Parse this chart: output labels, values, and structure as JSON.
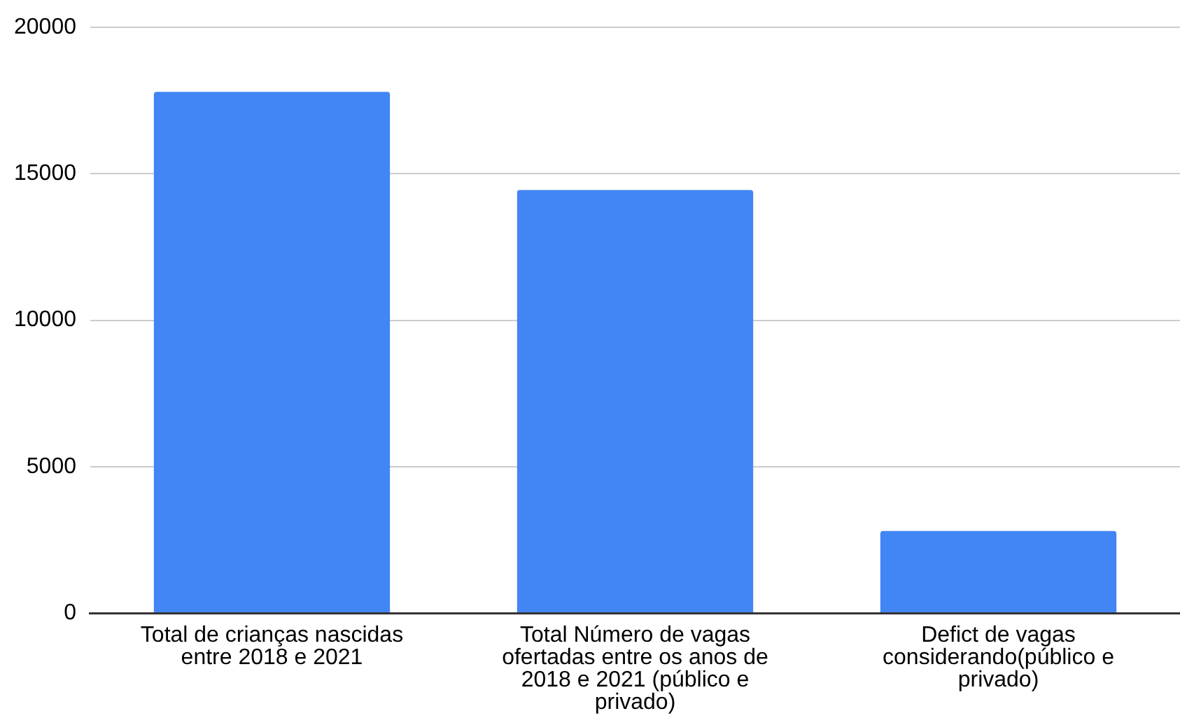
{
  "chart_data": {
    "type": "bar",
    "categories": [
      "Total de crianças nascidas entre 2018 e 2021",
      "Total Número de vagas ofertadas entre os anos de 2018 e 2021 (público e privado)",
      "Defict de vagas considerando(público e privado)"
    ],
    "values": [
      17800,
      14450,
      2800
    ],
    "color": "#4285f4",
    "ylim": [
      0,
      20000
    ],
    "yticks": [
      0,
      5000,
      10000,
      15000,
      20000
    ],
    "grid": "y",
    "legend": false
  }
}
